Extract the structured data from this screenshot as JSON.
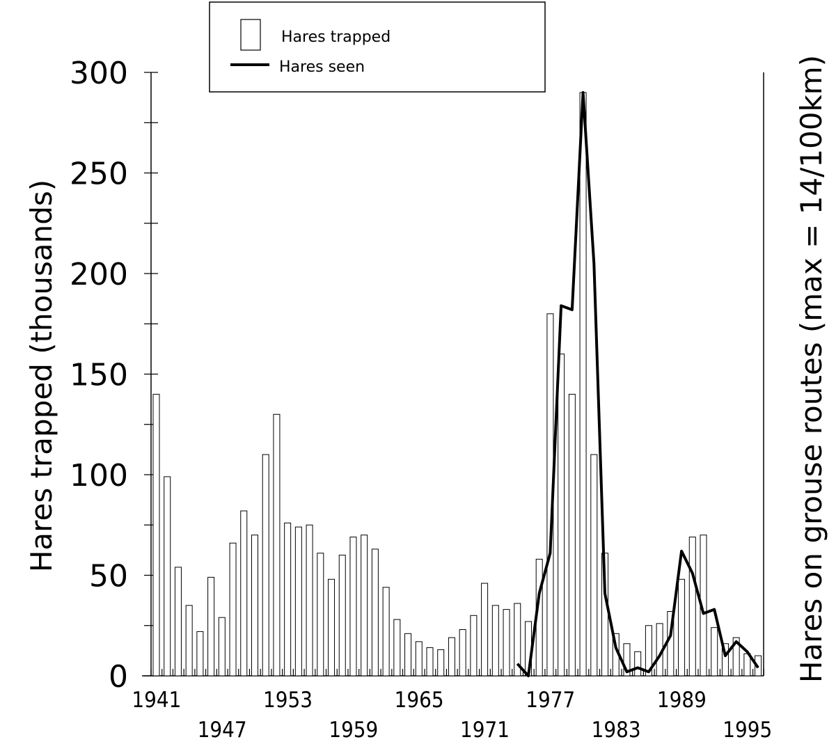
{
  "chart_data": {
    "type": "bar",
    "ylabel": "Hares trapped (thousands)",
    "y2label": "Hares on grouse routes (max = 14/100km)",
    "ylim": [
      0,
      300
    ],
    "yticks": [
      0,
      50,
      100,
      150,
      200,
      250,
      300
    ],
    "xlim": [
      1941,
      1995
    ],
    "xticks_top": [
      "1941",
      "1953",
      "1965",
      "1977",
      "1989"
    ],
    "xticks_bottom": [
      "1947",
      "1959",
      "1971",
      "1983",
      "1995"
    ],
    "legend": {
      "position": "top-left",
      "entries": [
        {
          "label": "Hares trapped",
          "symbol": "bar"
        },
        {
          "label": "Hares seen",
          "symbol": "line"
        }
      ]
    },
    "series": [
      {
        "name": "Hares trapped",
        "type": "bar",
        "years": [
          1941,
          1942,
          1943,
          1944,
          1945,
          1946,
          1947,
          1948,
          1949,
          1950,
          1951,
          1952,
          1953,
          1954,
          1955,
          1956,
          1957,
          1958,
          1959,
          1960,
          1961,
          1962,
          1963,
          1964,
          1965,
          1966,
          1967,
          1968,
          1969,
          1970,
          1971,
          1972,
          1973,
          1974,
          1975,
          1976,
          1977,
          1978,
          1979,
          1980,
          1981,
          1982,
          1983,
          1984,
          1985,
          1986,
          1987,
          1988,
          1989,
          1990,
          1991,
          1992,
          1993,
          1994,
          1995,
          1996
        ],
        "values": [
          140,
          99,
          54,
          35,
          22,
          49,
          29,
          66,
          82,
          70,
          110,
          130,
          76,
          74,
          75,
          61,
          48,
          60,
          69,
          70,
          63,
          44,
          28,
          21,
          17,
          14,
          13,
          19,
          23,
          30,
          46,
          35,
          33,
          36,
          27,
          58,
          180,
          160,
          140,
          290,
          110,
          61,
          21,
          16,
          12,
          25,
          26,
          32,
          48,
          69,
          70,
          24,
          16,
          19,
          11,
          10
        ]
      },
      {
        "name": "Hares seen",
        "type": "line",
        "years": [
          1974,
          1975,
          1976,
          1977,
          1978,
          1979,
          1980,
          1981,
          1982,
          1983,
          1984,
          1985,
          1986,
          1987,
          1988,
          1989,
          1990,
          1991,
          1992,
          1993,
          1994,
          1995,
          1996
        ],
        "values": [
          6,
          0,
          41,
          61,
          184,
          182,
          290,
          205,
          41,
          14,
          2,
          4,
          2,
          10,
          20,
          62,
          51,
          31,
          33,
          10,
          17,
          12,
          4
        ]
      }
    ]
  }
}
